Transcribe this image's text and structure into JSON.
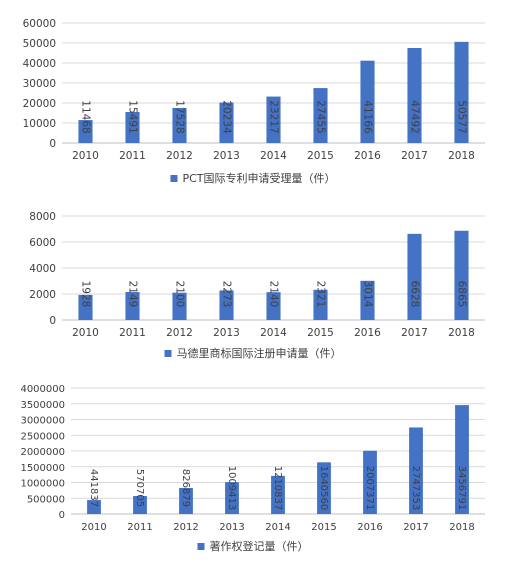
{
  "accent_color": "#4472C4",
  "chart_data": [
    {
      "type": "bar",
      "categories": [
        "2010",
        "2011",
        "2012",
        "2013",
        "2014",
        "2015",
        "2016",
        "2017",
        "2018"
      ],
      "series": [
        {
          "name": "PCT国际专利申请受理量（件）",
          "values": [
            11468,
            15491,
            17528,
            20234,
            23217,
            27455,
            41166,
            47492,
            50577
          ]
        }
      ],
      "data_labels": [
        "11468",
        "15491",
        "17528",
        "20234",
        "23217",
        "27455",
        "41166",
        "47492",
        "50577"
      ],
      "yticks": [
        "0",
        "10000",
        "20000",
        "30000",
        "40000",
        "50000",
        "60000"
      ],
      "ylim": [
        0,
        60000
      ],
      "grid": true,
      "legend_position": "bottom"
    },
    {
      "type": "bar",
      "categories": [
        "2010",
        "2011",
        "2012",
        "2013",
        "2014",
        "2015",
        "2016",
        "2017",
        "2018"
      ],
      "series": [
        {
          "name": "马德里商标国际注册申请量（件）",
          "values": [
            1928,
            2149,
            2100,
            2273,
            2140,
            2321,
            3014,
            6628,
            6865
          ]
        }
      ],
      "data_labels": [
        "1928",
        "2149",
        "2100",
        "2273",
        "2140",
        "2321",
        "3014",
        "6628",
        "6865"
      ],
      "yticks": [
        "0",
        "2000",
        "4000",
        "6000",
        "8000"
      ],
      "ylim": [
        0,
        8000
      ],
      "grid": true,
      "legend_position": "bottom"
    },
    {
      "type": "bar",
      "categories": [
        "2010",
        "2011",
        "2012",
        "2013",
        "2014",
        "2015",
        "2016",
        "2017",
        "2018"
      ],
      "series": [
        {
          "name": "著作权登记量（件）",
          "values": [
            441837,
            570705,
            826879,
            1009413,
            1210837,
            1640560,
            2007371,
            2747353,
            3456791
          ]
        }
      ],
      "data_labels": [
        "441837",
        "570705",
        "826879",
        "1009413",
        "1210837",
        "1640560",
        "2007371",
        "2747353",
        "3456791"
      ],
      "yticks": [
        "0",
        "500000",
        "1000000",
        "1500000",
        "2000000",
        "2500000",
        "3000000",
        "3500000",
        "4000000"
      ],
      "ylim": [
        0,
        4000000
      ],
      "grid": true,
      "legend_position": "bottom"
    }
  ]
}
